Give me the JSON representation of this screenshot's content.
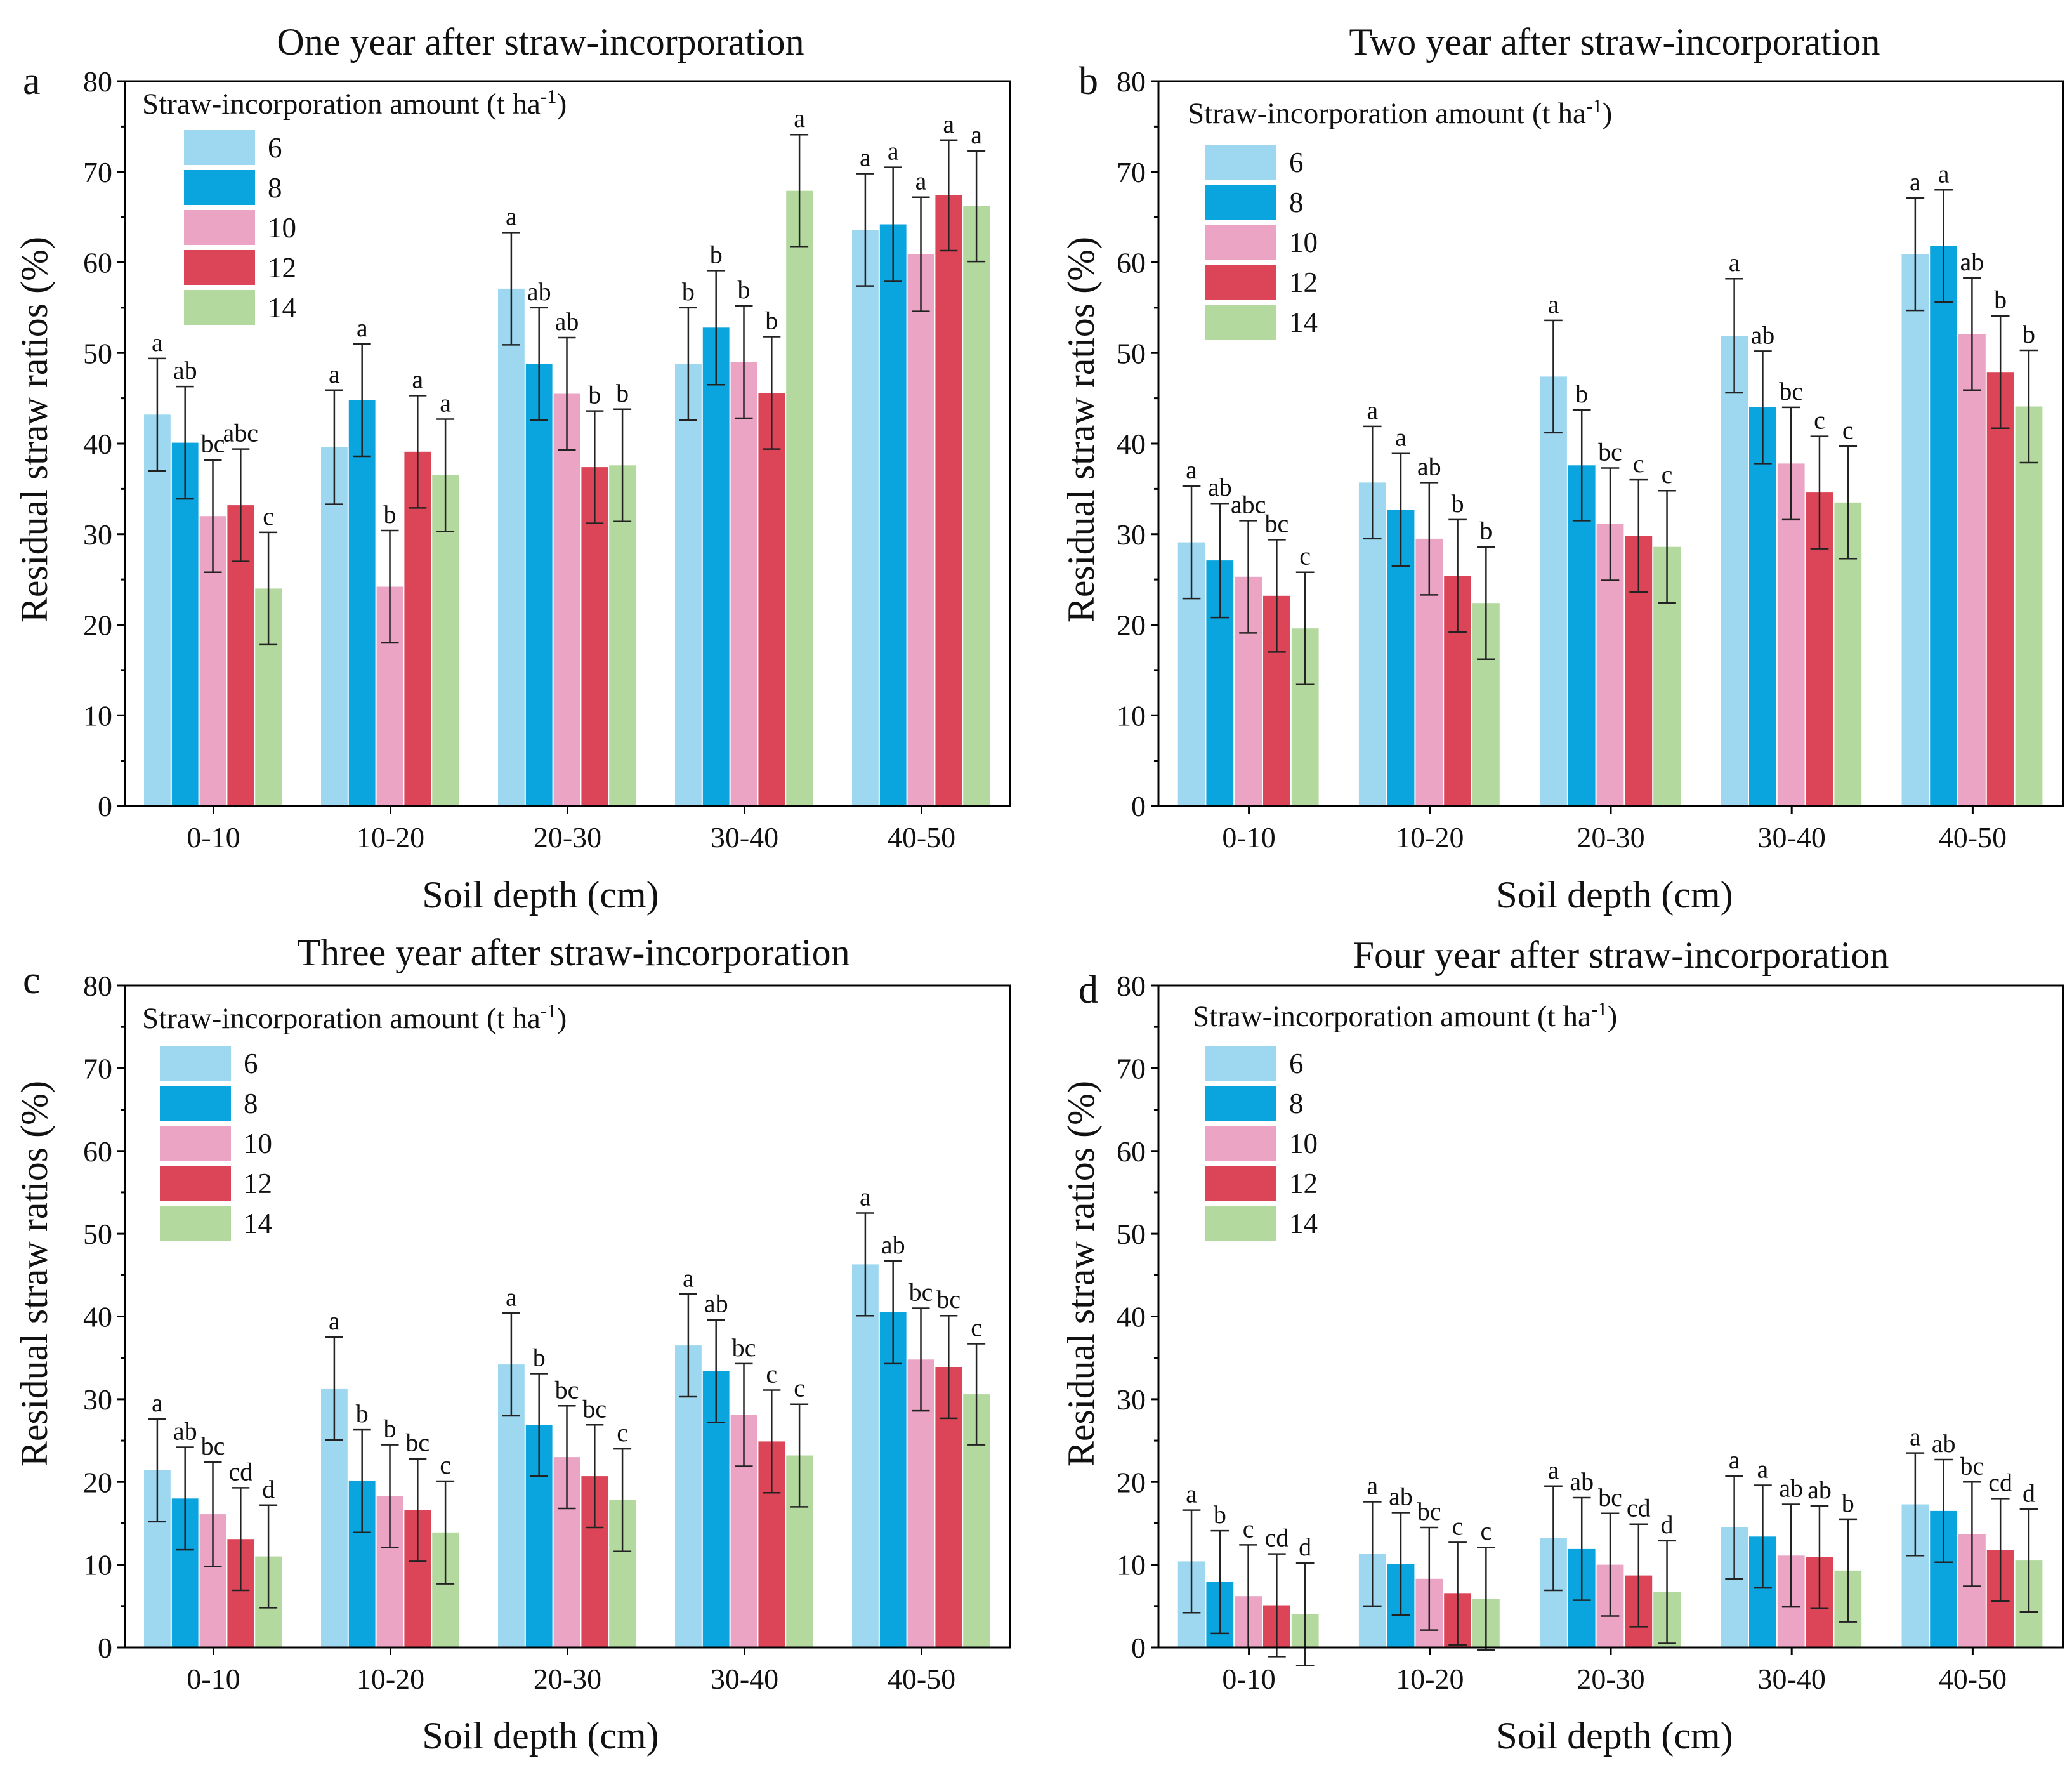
{
  "common": {
    "xlabel": "Soil depth (cm)",
    "ylabel": "Residual straw ratios (%)",
    "legend_title_main": "Straw-incorporation amount (t ha",
    "legend_title_sup": "-1",
    "legend_title_end": ")",
    "series_colors": [
      "#9dd7f0",
      "#0aa5de",
      "#eba4c4",
      "#dc4558",
      "#b3d99e"
    ]
  },
  "chart_data": [
    {
      "panel": "a",
      "type": "bar",
      "title": "One year after straw-incorporation",
      "xlabel": "Soil depth (cm)",
      "ylabel": "Residual straw ratios (%)",
      "ylim": [
        0,
        80
      ],
      "yticks": [
        0,
        10,
        20,
        30,
        40,
        50,
        60,
        70,
        80
      ],
      "categories": [
        "0-10",
        "10-20",
        "20-30",
        "30-40",
        "40-50"
      ],
      "legend_title": "Straw-incorporation amount (t ha-1)",
      "series": [
        {
          "name": "6",
          "values": [
            43.2,
            39.6,
            57.1,
            48.8,
            63.6
          ],
          "errors": [
            6.2,
            6.3,
            6.2,
            6.2,
            6.2
          ],
          "letters": [
            "a",
            "a",
            "a",
            "b",
            "a"
          ]
        },
        {
          "name": "8",
          "values": [
            40.1,
            44.8,
            48.8,
            52.8,
            64.2
          ],
          "errors": [
            6.2,
            6.2,
            6.2,
            6.3,
            6.3
          ],
          "letters": [
            "ab",
            "a",
            "ab",
            "b",
            "a"
          ]
        },
        {
          "name": "10",
          "values": [
            32.0,
            24.2,
            45.5,
            49.0,
            60.9
          ],
          "errors": [
            6.2,
            6.2,
            6.2,
            6.2,
            6.3
          ],
          "letters": [
            "bc",
            "b",
            "ab",
            "b",
            "a"
          ]
        },
        {
          "name": "12",
          "values": [
            33.2,
            39.1,
            37.4,
            45.6,
            67.4
          ],
          "errors": [
            6.2,
            6.2,
            6.2,
            6.2,
            6.1
          ],
          "letters": [
            "abc",
            "a",
            "b",
            "b",
            "a"
          ]
        },
        {
          "name": "14",
          "values": [
            24.0,
            36.5,
            37.6,
            67.9,
            66.2
          ],
          "errors": [
            6.2,
            6.2,
            6.2,
            6.2,
            6.1
          ],
          "letters": [
            "c",
            "a",
            "b",
            "a",
            "a"
          ]
        }
      ]
    },
    {
      "panel": "b",
      "type": "bar",
      "title": "Two year after straw-incorporation",
      "xlabel": "Soil depth (cm)",
      "ylabel": "Residual straw ratios (%)",
      "ylim": [
        0,
        80
      ],
      "yticks": [
        0,
        10,
        20,
        30,
        40,
        50,
        60,
        70,
        80
      ],
      "categories": [
        "0-10",
        "10-20",
        "20-30",
        "30-40",
        "40-50"
      ],
      "legend_title": "Straw-incorporation amount (t ha-1)",
      "series": [
        {
          "name": "6",
          "values": [
            29.1,
            35.7,
            47.4,
            51.9,
            60.9
          ],
          "errors": [
            6.2,
            6.2,
            6.2,
            6.3,
            6.2
          ],
          "letters": [
            "a",
            "a",
            "a",
            "a",
            "a"
          ]
        },
        {
          "name": "8",
          "values": [
            27.1,
            32.7,
            37.6,
            44.0,
            61.8
          ],
          "errors": [
            6.3,
            6.2,
            6.1,
            6.2,
            6.2
          ],
          "letters": [
            "ab",
            "a",
            "b",
            "ab",
            "a"
          ]
        },
        {
          "name": "10",
          "values": [
            25.3,
            29.5,
            31.1,
            37.8,
            52.1
          ],
          "errors": [
            6.2,
            6.2,
            6.2,
            6.2,
            6.2
          ],
          "letters": [
            "abc",
            "ab",
            "bc",
            "bc",
            "ab"
          ]
        },
        {
          "name": "12",
          "values": [
            23.2,
            25.4,
            29.8,
            34.6,
            47.9
          ],
          "errors": [
            6.2,
            6.2,
            6.2,
            6.2,
            6.2
          ],
          "letters": [
            "bc",
            "b",
            "c",
            "c",
            "b"
          ]
        },
        {
          "name": "14",
          "values": [
            19.6,
            22.4,
            28.6,
            33.5,
            44.1
          ],
          "errors": [
            6.2,
            6.2,
            6.2,
            6.2,
            6.2
          ],
          "letters": [
            "c",
            "b",
            "c",
            "c",
            "b"
          ]
        }
      ]
    },
    {
      "panel": "c",
      "type": "bar",
      "title": "Three year after straw-incorporation",
      "xlabel": "Soil depth (cm)",
      "ylabel": "Residual straw ratios (%)",
      "ylim": [
        0,
        80
      ],
      "yticks": [
        0,
        10,
        20,
        30,
        40,
        50,
        60,
        70,
        80
      ],
      "categories": [
        "0-10",
        "10-20",
        "20-30",
        "30-40",
        "40-50"
      ],
      "legend_title": "Straw-incorporation amount (t ha-1)",
      "series": [
        {
          "name": "6",
          "values": [
            21.4,
            31.3,
            34.2,
            36.5,
            46.3
          ],
          "errors": [
            6.2,
            6.2,
            6.2,
            6.2,
            6.2
          ],
          "letters": [
            "a",
            "a",
            "a",
            "a",
            "a"
          ]
        },
        {
          "name": "8",
          "values": [
            18.0,
            20.1,
            26.9,
            33.4,
            40.5
          ],
          "errors": [
            6.2,
            6.2,
            6.2,
            6.2,
            6.2
          ],
          "letters": [
            "ab",
            "b",
            "b",
            "ab",
            "ab"
          ]
        },
        {
          "name": "10",
          "values": [
            16.1,
            18.3,
            23.0,
            28.1,
            34.8
          ],
          "errors": [
            6.3,
            6.2,
            6.2,
            6.2,
            6.2
          ],
          "letters": [
            "bc",
            "b",
            "bc",
            "bc",
            "bc"
          ]
        },
        {
          "name": "12",
          "values": [
            13.1,
            16.6,
            20.7,
            24.9,
            33.9
          ],
          "errors": [
            6.2,
            6.2,
            6.2,
            6.2,
            6.2
          ],
          "letters": [
            "cd",
            "bc",
            "bc",
            "c",
            "bc"
          ]
        },
        {
          "name": "14",
          "values": [
            11.0,
            13.9,
            17.8,
            23.2,
            30.6
          ],
          "errors": [
            6.2,
            6.2,
            6.2,
            6.2,
            6.1
          ],
          "letters": [
            "d",
            "c",
            "c",
            "c",
            "c"
          ]
        }
      ]
    },
    {
      "panel": "d",
      "type": "bar",
      "title": "Four year after straw-incorporation",
      "xlabel": "Soil depth (cm)",
      "ylabel": "Residual straw ratios (%)",
      "ylim": [
        0,
        80
      ],
      "yticks": [
        0,
        10,
        20,
        30,
        40,
        50,
        60,
        70,
        80
      ],
      "categories": [
        "0-10",
        "10-20",
        "20-30",
        "30-40",
        "40-50"
      ],
      "legend_title": "Straw-incorporation amount (t ha-1)",
      "series": [
        {
          "name": "6",
          "values": [
            10.4,
            11.3,
            13.2,
            14.5,
            17.3
          ],
          "errors": [
            6.2,
            6.3,
            6.3,
            6.2,
            6.2
          ],
          "letters": [
            "a",
            "a",
            "a",
            "a",
            "a"
          ]
        },
        {
          "name": "8",
          "values": [
            7.9,
            10.1,
            11.9,
            13.4,
            16.5
          ],
          "errors": [
            6.2,
            6.2,
            6.2,
            6.2,
            6.2
          ],
          "letters": [
            "b",
            "ab",
            "ab",
            "a",
            "ab"
          ]
        },
        {
          "name": "10",
          "values": [
            6.2,
            8.3,
            10.0,
            11.1,
            13.7
          ],
          "errors": [
            6.2,
            6.2,
            6.2,
            6.2,
            6.3
          ],
          "letters": [
            "c",
            "bc",
            "bc",
            "ab",
            "bc"
          ]
        },
        {
          "name": "12",
          "values": [
            5.1,
            6.5,
            8.7,
            10.9,
            11.8
          ],
          "errors": [
            6.2,
            6.2,
            6.2,
            6.2,
            6.2
          ],
          "letters": [
            "cd",
            "c",
            "cd",
            "ab",
            "cd"
          ]
        },
        {
          "name": "14",
          "values": [
            4.0,
            5.9,
            6.7,
            9.3,
            10.5
          ],
          "errors": [
            6.2,
            6.2,
            6.2,
            6.2,
            6.2
          ],
          "letters": [
            "d",
            "c",
            "d",
            "b",
            "d"
          ]
        }
      ]
    }
  ]
}
